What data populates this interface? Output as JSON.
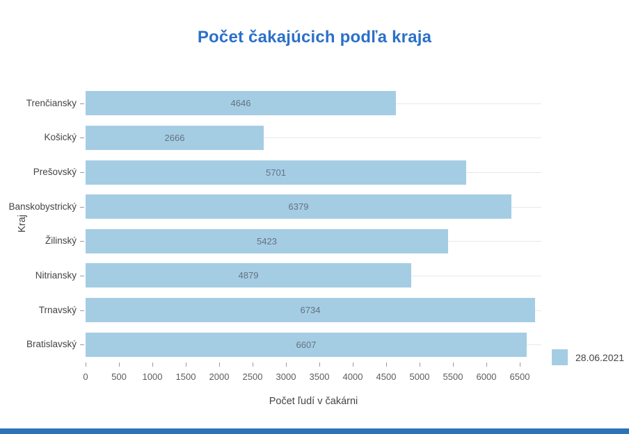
{
  "title": "Počet čakajúcich podľa kraja",
  "axes": {
    "x_title": "Počet ľudí v čakárni",
    "y_title": "Kraj"
  },
  "legend": {
    "label": "28.06.2021"
  },
  "colors": {
    "title": "#2b70c8",
    "bar": "#a4cde4",
    "value_label": "#667180",
    "category_label": "#444444",
    "tick_label": "#5c5c5c",
    "grid": "#e8e8e8",
    "tick": "#999999",
    "footer_bar": "#2e73b8",
    "background": "#ffffff"
  },
  "chart_data": {
    "type": "bar",
    "orientation": "horizontal",
    "title": "Počet čakajúcich podľa kraja",
    "xlabel": "Počet ľudí v čakárni",
    "ylabel": "Kraj",
    "categories": [
      "Trenčiansky",
      "Košický",
      "Prešovský",
      "Banskobystrický",
      "Žilinský",
      "Nitriansky",
      "Trnavský",
      "Bratislavský"
    ],
    "series": [
      {
        "name": "28.06.2021",
        "values": [
          4646,
          2666,
          5701,
          6379,
          5423,
          4879,
          6734,
          6607
        ]
      }
    ],
    "value_labels_inside_bars": true,
    "xticks": [
      0,
      500,
      1000,
      1500,
      2000,
      2500,
      3000,
      3500,
      4000,
      4500,
      5000,
      5500,
      6000,
      6500
    ],
    "xlim": [
      0,
      6822
    ],
    "grid": "horizontal-category-lines",
    "legend_position": "bottom-right"
  }
}
